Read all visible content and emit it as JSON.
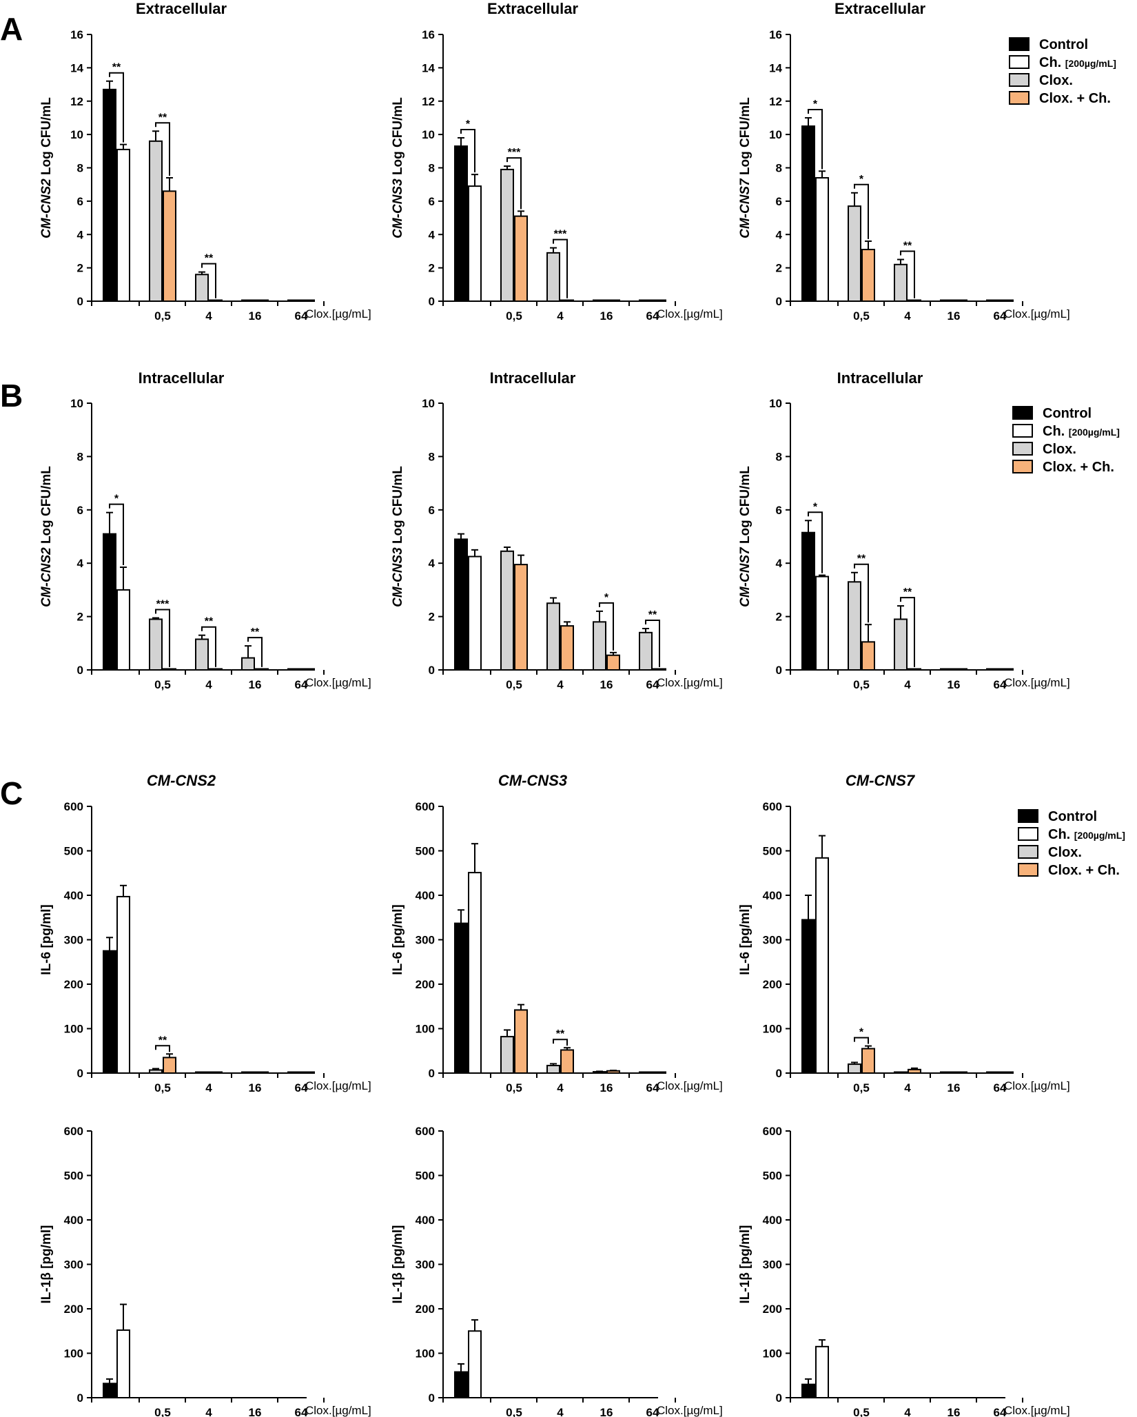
{
  "panel_letters": [
    "A",
    "B",
    "C"
  ],
  "legend": {
    "items": [
      {
        "label": "Control",
        "sub": "",
        "color": "#000000"
      },
      {
        "label": "Ch. ",
        "sub": "[200µg/mL]",
        "color": "#ffffff"
      },
      {
        "label": "Clox.",
        "sub": "",
        "color": "#d3d3d3"
      },
      {
        "label": "Clox. + Ch.",
        "sub": "",
        "color": "#f7b27a"
      }
    ]
  },
  "colors": {
    "control": "#000000",
    "ch": "#ffffff",
    "clox": "#d3d3d3",
    "clox_ch": "#f7b27a",
    "axis": "#000000"
  },
  "chart_data": [
    {
      "id": "A1",
      "type": "bar",
      "title": "Extracellular",
      "title_italic": false,
      "ylabel_strain": "CM-CNS2",
      "ylabel_rest": " Log CFU/mL",
      "ylim": [
        0,
        16
      ],
      "yticks": [
        0,
        2,
        4,
        6,
        8,
        10,
        12,
        14,
        16
      ],
      "categories": [
        "",
        "0,5",
        "4",
        "16",
        "64"
      ],
      "xunit": "Clox.[µg/mL]",
      "bars": [
        {
          "c": 0,
          "s": "control",
          "v": 12.7,
          "e": 0.5
        },
        {
          "c": 0,
          "s": "ch",
          "v": 9.1,
          "e": 0.3
        },
        {
          "c": 1,
          "s": "clox",
          "v": 9.6,
          "e": 0.6
        },
        {
          "c": 1,
          "s": "clox_ch",
          "v": 6.6,
          "e": 0.8
        },
        {
          "c": 2,
          "s": "clox",
          "v": 1.6,
          "e": 0.15
        },
        {
          "c": 2,
          "s": "clox_ch",
          "v": 0.05,
          "e": 0
        },
        {
          "c": 3,
          "s": "clox",
          "v": 0.05,
          "e": 0
        },
        {
          "c": 3,
          "s": "clox_ch",
          "v": 0.05,
          "e": 0
        },
        {
          "c": 4,
          "s": "clox",
          "v": 0.05,
          "e": 0
        },
        {
          "c": 4,
          "s": "clox_ch",
          "v": 0.05,
          "e": 0
        }
      ],
      "sig": [
        {
          "c": 0,
          "t": "**"
        },
        {
          "c": 1,
          "t": "**"
        },
        {
          "c": 2,
          "t": "**"
        }
      ]
    },
    {
      "id": "A2",
      "type": "bar",
      "title": "Extracellular",
      "title_italic": false,
      "ylabel_strain": "CM-CNS3",
      "ylabel_rest": "  Log CFU/mL",
      "ylim": [
        0,
        16
      ],
      "yticks": [
        0,
        2,
        4,
        6,
        8,
        10,
        12,
        14,
        16
      ],
      "categories": [
        "",
        "0,5",
        "4",
        "16",
        "64"
      ],
      "xunit": "Clox.[µg/mL]",
      "bars": [
        {
          "c": 0,
          "s": "control",
          "v": 9.3,
          "e": 0.5
        },
        {
          "c": 0,
          "s": "ch",
          "v": 6.9,
          "e": 0.7
        },
        {
          "c": 1,
          "s": "clox",
          "v": 7.9,
          "e": 0.2
        },
        {
          "c": 1,
          "s": "clox_ch",
          "v": 5.1,
          "e": 0.3
        },
        {
          "c": 2,
          "s": "clox",
          "v": 2.9,
          "e": 0.3
        },
        {
          "c": 2,
          "s": "clox_ch",
          "v": 0.05,
          "e": 0
        },
        {
          "c": 3,
          "s": "clox",
          "v": 0.05,
          "e": 0
        },
        {
          "c": 3,
          "s": "clox_ch",
          "v": 0.05,
          "e": 0
        },
        {
          "c": 4,
          "s": "clox",
          "v": 0.05,
          "e": 0
        },
        {
          "c": 4,
          "s": "clox_ch",
          "v": 0.05,
          "e": 0
        }
      ],
      "sig": [
        {
          "c": 0,
          "t": "*"
        },
        {
          "c": 1,
          "t": "***"
        },
        {
          "c": 2,
          "t": "***"
        }
      ]
    },
    {
      "id": "A3",
      "type": "bar",
      "title": "Extracellular",
      "title_italic": false,
      "ylabel_strain": "CM-CNS7",
      "ylabel_rest": " Log CFU/mL",
      "ylim": [
        0,
        16
      ],
      "yticks": [
        0,
        2,
        4,
        6,
        8,
        10,
        12,
        14,
        16
      ],
      "categories": [
        "",
        "0,5",
        "4",
        "16",
        "64"
      ],
      "xunit": "Clox.[µg/mL]",
      "bars": [
        {
          "c": 0,
          "s": "control",
          "v": 10.5,
          "e": 0.5
        },
        {
          "c": 0,
          "s": "ch",
          "v": 7.4,
          "e": 0.4
        },
        {
          "c": 1,
          "s": "clox",
          "v": 5.7,
          "e": 0.8
        },
        {
          "c": 1,
          "s": "clox_ch",
          "v": 3.1,
          "e": 0.5
        },
        {
          "c": 2,
          "s": "clox",
          "v": 2.2,
          "e": 0.3
        },
        {
          "c": 2,
          "s": "clox_ch",
          "v": 0.05,
          "e": 0
        },
        {
          "c": 3,
          "s": "clox",
          "v": 0.05,
          "e": 0
        },
        {
          "c": 3,
          "s": "clox_ch",
          "v": 0.05,
          "e": 0
        },
        {
          "c": 4,
          "s": "clox",
          "v": 0.05,
          "e": 0
        },
        {
          "c": 4,
          "s": "clox_ch",
          "v": 0.05,
          "e": 0
        }
      ],
      "sig": [
        {
          "c": 0,
          "t": "*"
        },
        {
          "c": 1,
          "t": "*"
        },
        {
          "c": 2,
          "t": "**"
        }
      ]
    },
    {
      "id": "B1",
      "type": "bar",
      "title": "Intracellular",
      "title_italic": false,
      "ylabel_strain": "CM-CNS2",
      "ylabel_rest": " Log CFU/mL",
      "ylim": [
        0,
        10
      ],
      "yticks": [
        0,
        2,
        4,
        6,
        8,
        10
      ],
      "categories": [
        "",
        "0,5",
        "4",
        "16",
        "64"
      ],
      "xunit": "Clox.[µg/mL]",
      "bars": [
        {
          "c": 0,
          "s": "control",
          "v": 5.1,
          "e": 0.8
        },
        {
          "c": 0,
          "s": "ch",
          "v": 3.0,
          "e": 0.85
        },
        {
          "c": 1,
          "s": "clox",
          "v": 1.9,
          "e": 0.05
        },
        {
          "c": 1,
          "s": "clox_ch",
          "v": 0.03,
          "e": 0
        },
        {
          "c": 2,
          "s": "clox",
          "v": 1.15,
          "e": 0.15
        },
        {
          "c": 2,
          "s": "clox_ch",
          "v": 0.03,
          "e": 0
        },
        {
          "c": 3,
          "s": "clox",
          "v": 0.45,
          "e": 0.45
        },
        {
          "c": 3,
          "s": "clox_ch",
          "v": 0.03,
          "e": 0
        },
        {
          "c": 4,
          "s": "clox",
          "v": 0.03,
          "e": 0
        },
        {
          "c": 4,
          "s": "clox_ch",
          "v": 0.03,
          "e": 0
        }
      ],
      "sig": [
        {
          "c": 0,
          "t": "*"
        },
        {
          "c": 1,
          "t": "***"
        },
        {
          "c": 2,
          "t": "**"
        },
        {
          "c": 3,
          "t": "**"
        }
      ]
    },
    {
      "id": "B2",
      "type": "bar",
      "title": "Intracellular",
      "title_italic": false,
      "ylabel_strain": "CM-CNS3",
      "ylabel_rest": "  Log CFU/mL",
      "ylim": [
        0,
        10
      ],
      "yticks": [
        0,
        2,
        4,
        6,
        8,
        10
      ],
      "categories": [
        "",
        "0,5",
        "4",
        "16",
        "64"
      ],
      "xunit": "Clox.[µg/mL]",
      "bars": [
        {
          "c": 0,
          "s": "control",
          "v": 4.9,
          "e": 0.2
        },
        {
          "c": 0,
          "s": "ch",
          "v": 4.25,
          "e": 0.25
        },
        {
          "c": 1,
          "s": "clox",
          "v": 4.45,
          "e": 0.15
        },
        {
          "c": 1,
          "s": "clox_ch",
          "v": 3.95,
          "e": 0.35
        },
        {
          "c": 2,
          "s": "clox",
          "v": 2.5,
          "e": 0.2
        },
        {
          "c": 2,
          "s": "clox_ch",
          "v": 1.65,
          "e": 0.15
        },
        {
          "c": 3,
          "s": "clox",
          "v": 1.8,
          "e": 0.4
        },
        {
          "c": 3,
          "s": "clox_ch",
          "v": 0.55,
          "e": 0.1
        },
        {
          "c": 4,
          "s": "clox",
          "v": 1.4,
          "e": 0.15
        },
        {
          "c": 4,
          "s": "clox_ch",
          "v": 0.03,
          "e": 0
        }
      ],
      "sig": [
        {
          "c": 3,
          "t": "*"
        },
        {
          "c": 4,
          "t": "**"
        }
      ]
    },
    {
      "id": "B3",
      "type": "bar",
      "title": "Intracellular",
      "title_italic": false,
      "ylabel_strain": "CM-CNS7",
      "ylabel_rest": " Log CFU/mL",
      "ylim": [
        0,
        10
      ],
      "yticks": [
        0,
        2,
        4,
        6,
        8,
        10
      ],
      "categories": [
        "",
        "0,5",
        "4",
        "16",
        "64"
      ],
      "xunit": "Clox.[µg/mL]",
      "bars": [
        {
          "c": 0,
          "s": "control",
          "v": 5.15,
          "e": 0.45
        },
        {
          "c": 0,
          "s": "ch",
          "v": 3.5,
          "e": 0.05
        },
        {
          "c": 1,
          "s": "clox",
          "v": 3.3,
          "e": 0.35
        },
        {
          "c": 1,
          "s": "clox_ch",
          "v": 1.05,
          "e": 0.65
        },
        {
          "c": 2,
          "s": "clox",
          "v": 1.9,
          "e": 0.5
        },
        {
          "c": 2,
          "s": "clox_ch",
          "v": 0.03,
          "e": 0
        },
        {
          "c": 3,
          "s": "clox",
          "v": 0.03,
          "e": 0
        },
        {
          "c": 3,
          "s": "clox_ch",
          "v": 0.03,
          "e": 0
        },
        {
          "c": 4,
          "s": "clox",
          "v": 0.03,
          "e": 0
        },
        {
          "c": 4,
          "s": "clox_ch",
          "v": 0.03,
          "e": 0
        }
      ],
      "sig": [
        {
          "c": 0,
          "t": "*"
        },
        {
          "c": 1,
          "t": "**"
        },
        {
          "c": 2,
          "t": "**"
        }
      ]
    },
    {
      "id": "C1",
      "type": "bar",
      "title": "CM-CNS2",
      "title_italic": true,
      "ylabel_strain": "",
      "ylabel_rest": "IL-6 [pg/ml]",
      "ylim": [
        0,
        600
      ],
      "yticks": [
        0,
        100,
        200,
        300,
        400,
        500,
        600
      ],
      "categories": [
        "",
        "0,5",
        "4",
        "16",
        "64"
      ],
      "xunit": "Clox.[µg/mL]",
      "bars": [
        {
          "c": 0,
          "s": "control",
          "v": 275,
          "e": 30
        },
        {
          "c": 0,
          "s": "ch",
          "v": 397,
          "e": 25
        },
        {
          "c": 1,
          "s": "clox",
          "v": 7,
          "e": 3
        },
        {
          "c": 1,
          "s": "clox_ch",
          "v": 35,
          "e": 8
        },
        {
          "c": 2,
          "s": "clox",
          "v": 2,
          "e": 0
        },
        {
          "c": 2,
          "s": "clox_ch",
          "v": 2,
          "e": 0
        },
        {
          "c": 3,
          "s": "clox",
          "v": 1,
          "e": 0
        },
        {
          "c": 3,
          "s": "clox_ch",
          "v": 1,
          "e": 0
        },
        {
          "c": 4,
          "s": "clox",
          "v": 1,
          "e": 0
        },
        {
          "c": 4,
          "s": "clox_ch",
          "v": 2,
          "e": 0
        }
      ],
      "sig": [
        {
          "c": 1,
          "t": "**"
        }
      ]
    },
    {
      "id": "C2",
      "type": "bar",
      "title": "CM-CNS3",
      "title_italic": true,
      "ylabel_strain": "",
      "ylabel_rest": "IL-6 [pg/ml]",
      "ylim": [
        0,
        600
      ],
      "yticks": [
        0,
        100,
        200,
        300,
        400,
        500,
        600
      ],
      "categories": [
        "",
        "0,5",
        "4",
        "16",
        "64"
      ],
      "xunit": "Clox.[µg/mL]",
      "bars": [
        {
          "c": 0,
          "s": "control",
          "v": 337,
          "e": 30
        },
        {
          "c": 0,
          "s": "ch",
          "v": 451,
          "e": 65
        },
        {
          "c": 1,
          "s": "clox",
          "v": 82,
          "e": 15
        },
        {
          "c": 1,
          "s": "clox_ch",
          "v": 142,
          "e": 12
        },
        {
          "c": 2,
          "s": "clox",
          "v": 17,
          "e": 4
        },
        {
          "c": 2,
          "s": "clox_ch",
          "v": 52,
          "e": 5
        },
        {
          "c": 3,
          "s": "clox",
          "v": 3,
          "e": 1
        },
        {
          "c": 3,
          "s": "clox_ch",
          "v": 5,
          "e": 1
        },
        {
          "c": 4,
          "s": "clox",
          "v": 1,
          "e": 0
        },
        {
          "c": 4,
          "s": "clox_ch",
          "v": 1,
          "e": 0
        }
      ],
      "sig": [
        {
          "c": 2,
          "t": "**"
        }
      ]
    },
    {
      "id": "C3",
      "type": "bar",
      "title": "CM-CNS7",
      "title_italic": true,
      "ylabel_strain": "",
      "ylabel_rest": "IL-6 [pg/ml]",
      "ylim": [
        0,
        600
      ],
      "yticks": [
        0,
        100,
        200,
        300,
        400,
        500,
        600
      ],
      "categories": [
        "",
        "0,5",
        "4",
        "16",
        "64"
      ],
      "xunit": "Clox.[µg/mL]",
      "bars": [
        {
          "c": 0,
          "s": "control",
          "v": 345,
          "e": 55
        },
        {
          "c": 0,
          "s": "ch",
          "v": 484,
          "e": 50
        },
        {
          "c": 1,
          "s": "clox",
          "v": 20,
          "e": 4
        },
        {
          "c": 1,
          "s": "clox_ch",
          "v": 55,
          "e": 6
        },
        {
          "c": 2,
          "s": "clox",
          "v": 2,
          "e": 0
        },
        {
          "c": 2,
          "s": "clox_ch",
          "v": 8,
          "e": 3
        },
        {
          "c": 3,
          "s": "clox",
          "v": 1,
          "e": 0
        },
        {
          "c": 3,
          "s": "clox_ch",
          "v": 1,
          "e": 0
        },
        {
          "c": 4,
          "s": "clox",
          "v": 1,
          "e": 0
        },
        {
          "c": 4,
          "s": "clox_ch",
          "v": 1,
          "e": 0
        }
      ],
      "sig": [
        {
          "c": 1,
          "t": "*"
        }
      ]
    },
    {
      "id": "D1",
      "type": "bar",
      "title": "",
      "title_italic": false,
      "ylabel_strain": "",
      "ylabel_rest": "IL-1β [pg/ml]",
      "ylim": [
        0,
        600
      ],
      "yticks": [
        0,
        100,
        200,
        300,
        400,
        500,
        600
      ],
      "categories": [
        "",
        "0,5",
        "4",
        "16",
        "64"
      ],
      "xunit": "Clox.[µg/mL]",
      "bars": [
        {
          "c": 0,
          "s": "control",
          "v": 32,
          "e": 10
        },
        {
          "c": 0,
          "s": "ch",
          "v": 152,
          "e": 58
        }
      ],
      "sig": []
    },
    {
      "id": "D2",
      "type": "bar",
      "title": "",
      "title_italic": false,
      "ylabel_strain": "",
      "ylabel_rest": "IL-1β [pg/ml]",
      "ylim": [
        0,
        600
      ],
      "yticks": [
        0,
        100,
        200,
        300,
        400,
        500,
        600
      ],
      "categories": [
        "",
        "0,5",
        "4",
        "16",
        "64"
      ],
      "xunit": "Clox.[µg/mL]",
      "bars": [
        {
          "c": 0,
          "s": "control",
          "v": 58,
          "e": 18
        },
        {
          "c": 0,
          "s": "ch",
          "v": 150,
          "e": 25
        }
      ],
      "sig": []
    },
    {
      "id": "D3",
      "type": "bar",
      "title": "",
      "title_italic": false,
      "ylabel_strain": "",
      "ylabel_rest": "IL-1β [pg/ml]",
      "ylim": [
        0,
        600
      ],
      "yticks": [
        0,
        100,
        200,
        300,
        400,
        500,
        600
      ],
      "categories": [
        "",
        "0,5",
        "4",
        "16",
        "64"
      ],
      "xunit": "Clox.[µg/mL]",
      "bars": [
        {
          "c": 0,
          "s": "control",
          "v": 30,
          "e": 12
        },
        {
          "c": 0,
          "s": "ch",
          "v": 115,
          "e": 15
        }
      ],
      "sig": []
    }
  ]
}
